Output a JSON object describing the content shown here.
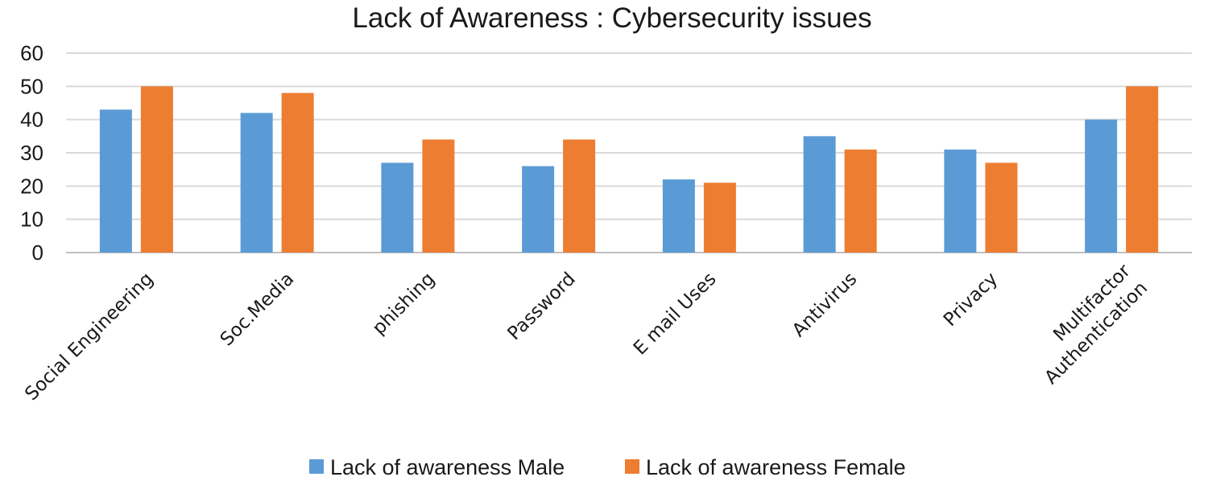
{
  "chart_data": {
    "type": "bar",
    "title": "Lack of Awareness : Cybersecurity issues",
    "xlabel": "",
    "ylabel": "",
    "ylim": [
      0,
      60
    ],
    "yticks": [
      0,
      10,
      20,
      30,
      40,
      50,
      60
    ],
    "grid": true,
    "legend_position": "bottom",
    "categories": [
      [
        "Social Engineering"
      ],
      [
        "Soc.Media"
      ],
      [
        "phishing"
      ],
      [
        "Password"
      ],
      [
        "E mail Uses"
      ],
      [
        "Antivirus"
      ],
      [
        "Privacy"
      ],
      [
        "Multifactor",
        "Authentication"
      ]
    ],
    "series": [
      {
        "name": "Lack of awareness Male",
        "color": "#5b9bd5",
        "values": [
          43,
          42,
          27,
          26,
          22,
          35,
          31,
          40
        ]
      },
      {
        "name": "Lack of awareness Female",
        "color": "#ed7d31",
        "values": [
          50,
          48,
          34,
          34,
          21,
          31,
          27,
          50
        ]
      }
    ]
  }
}
